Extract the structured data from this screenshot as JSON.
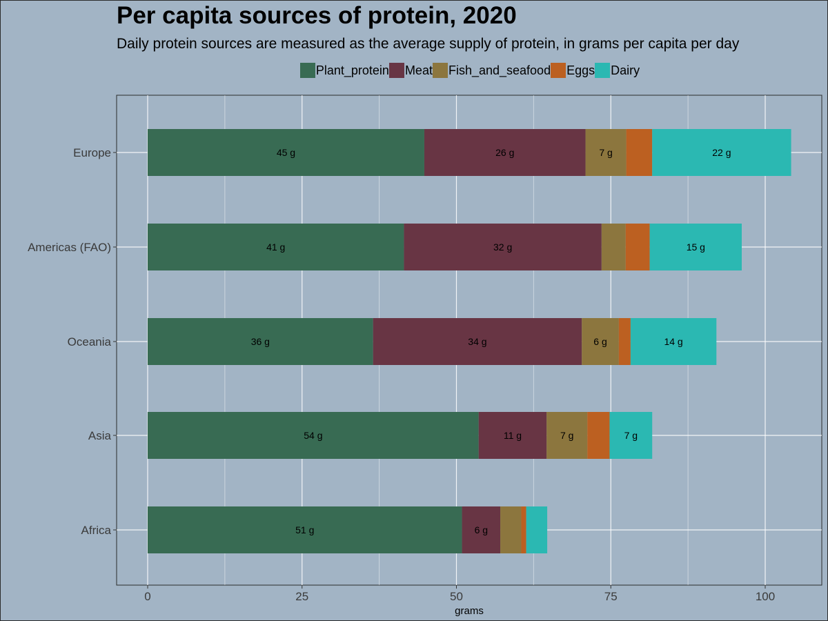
{
  "chart_data": {
    "type": "bar",
    "orientation": "horizontal",
    "stacked": true,
    "title": "Per capita sources of protein, 2020",
    "subtitle": "Daily protein sources are measured as the average supply of protein, in grams per capita per day",
    "xlabel": "grams",
    "ylabel": "",
    "xlim": [
      -5,
      109
    ],
    "xticks": [
      0,
      25,
      50,
      75,
      100
    ],
    "grid": true,
    "legend_position": "top",
    "categories": [
      "Europe",
      "Americas (FAO)",
      "Oceania",
      "Asia",
      "Africa"
    ],
    "series": [
      {
        "name": "Plant_protein",
        "color": "#386b53",
        "values": [
          44.8,
          41.5,
          36.5,
          53.6,
          50.9
        ],
        "labels": [
          "45 g",
          "41 g",
          "36 g",
          "54 g",
          "51 g"
        ]
      },
      {
        "name": "Meat",
        "color": "#683544",
        "values": [
          26.1,
          32.0,
          33.8,
          11.0,
          6.2
        ],
        "labels": [
          "26 g",
          "32 g",
          "34 g",
          "11 g",
          "6 g"
        ]
      },
      {
        "name": "Fish_and_seafood",
        "color": "#8c763e",
        "values": [
          6.6,
          3.9,
          6.0,
          6.6,
          3.4
        ],
        "labels": [
          "7 g",
          "",
          "6 g",
          "7 g",
          ""
        ]
      },
      {
        "name": "Eggs",
        "color": "#bc6021",
        "values": [
          4.2,
          3.9,
          1.9,
          3.6,
          0.8
        ],
        "labels": [
          "",
          "",
          "",
          "",
          ""
        ]
      },
      {
        "name": "Dairy",
        "color": "#2bb8b2",
        "values": [
          22.5,
          14.9,
          13.9,
          6.9,
          3.4
        ],
        "labels": [
          "22 g",
          "15 g",
          "14 g",
          "7 g",
          ""
        ]
      }
    ]
  }
}
